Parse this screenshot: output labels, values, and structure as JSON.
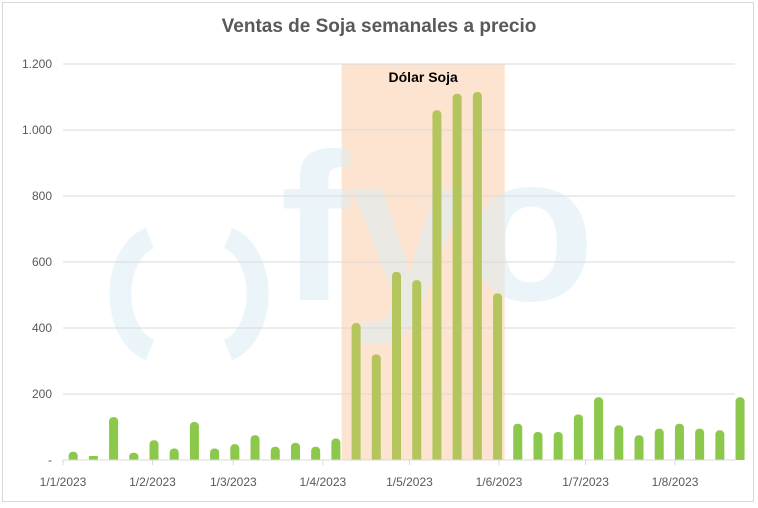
{
  "chart_data": {
    "type": "bar",
    "title": "Ventas de Soja semanales a precio",
    "xlabel": "",
    "ylabel": "",
    "ylim": [
      0,
      1200
    ],
    "yticks": [
      0,
      200,
      400,
      600,
      800,
      1000,
      1200
    ],
    "ytick_labels": [
      "-",
      "200",
      "400",
      "600",
      "800",
      "1.000",
      "1.200"
    ],
    "xtick_labels": [
      "1/1/2023",
      "1/2/2023",
      "1/3/2023",
      "1/4/2023",
      "1/5/2023",
      "1/6/2023",
      "1/7/2023",
      "1/8/2023"
    ],
    "xtick_days": [
      0,
      31,
      59,
      90,
      120,
      151,
      181,
      212
    ],
    "x_days": [
      3,
      10,
      17,
      24,
      31,
      38,
      45,
      52,
      59,
      66,
      73,
      80,
      87,
      94,
      101,
      108,
      115,
      122,
      129,
      136,
      143,
      150,
      157,
      164,
      171,
      178,
      185,
      192,
      199,
      206,
      213,
      220,
      227,
      234
    ],
    "values": [
      25,
      12,
      130,
      22,
      60,
      35,
      115,
      35,
      48,
      75,
      40,
      52,
      40,
      65,
      415,
      320,
      570,
      545,
      1060,
      1110,
      1115,
      505,
      110,
      85,
      85,
      138,
      190,
      105,
      75,
      95,
      110,
      95,
      90,
      190
    ],
    "grid": true,
    "legend": "none",
    "highlight": {
      "label": "Dólar Soja",
      "start_day": 96.5,
      "end_day": 153,
      "color": "#fde4d0"
    },
    "bar_color": "#8cc84b",
    "bar_color_highlight": "#b5c55e",
    "watermark": "fyo"
  }
}
